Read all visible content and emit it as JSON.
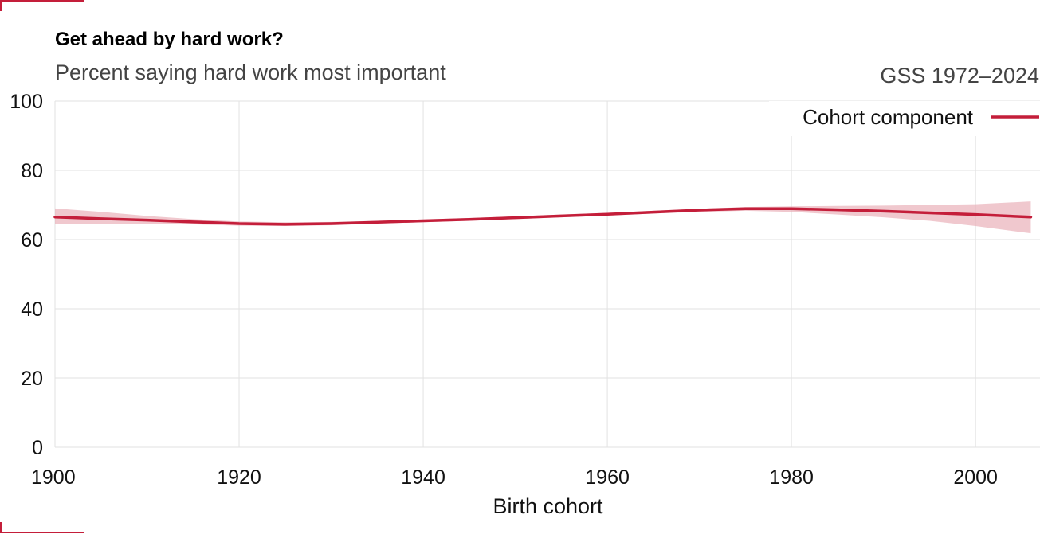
{
  "header": {
    "title": "Get ahead by hard work?",
    "subtitle": "Percent saying hard work most important",
    "source": "GSS 1972–2024"
  },
  "colors": {
    "series": "#c41e3a",
    "band": "#e8aab4",
    "grid": "#e2e2e2"
  },
  "chart_data": {
    "type": "line",
    "title": "Get ahead by hard work?",
    "subtitle": "Percent saying hard work most important",
    "xlabel": "Birth cohort",
    "ylabel": "",
    "xlim": [
      1900,
      2007
    ],
    "ylim": [
      0,
      100
    ],
    "xticks": [
      1900,
      1920,
      1940,
      1960,
      1980,
      2000
    ],
    "yticks": [
      0,
      20,
      40,
      60,
      80,
      100
    ],
    "grid": true,
    "legend_position": "top-right",
    "series": [
      {
        "name": "Cohort component",
        "x": [
          1900,
          1905,
          1910,
          1915,
          1920,
          1925,
          1930,
          1935,
          1940,
          1945,
          1950,
          1955,
          1960,
          1965,
          1970,
          1975,
          1980,
          1985,
          1990,
          1995,
          2000,
          2006
        ],
        "y": [
          66.5,
          66.0,
          65.6,
          65.1,
          64.6,
          64.4,
          64.6,
          65.0,
          65.4,
          65.8,
          66.3,
          66.8,
          67.3,
          67.9,
          68.5,
          68.9,
          68.9,
          68.6,
          68.2,
          67.7,
          67.2,
          66.5
        ],
        "lower": [
          64.4,
          64.5,
          64.6,
          64.4,
          64.0,
          63.9,
          64.1,
          64.6,
          65.0,
          65.4,
          65.9,
          66.4,
          66.9,
          67.5,
          68.0,
          68.3,
          68.0,
          67.2,
          66.4,
          65.4,
          63.9,
          61.8
        ],
        "upper": [
          69.0,
          68.0,
          66.8,
          65.9,
          65.2,
          65.0,
          65.1,
          65.4,
          65.8,
          66.2,
          66.7,
          67.2,
          67.7,
          68.3,
          68.9,
          69.4,
          69.6,
          69.7,
          69.8,
          70.0,
          70.2,
          71.0
        ]
      }
    ]
  }
}
